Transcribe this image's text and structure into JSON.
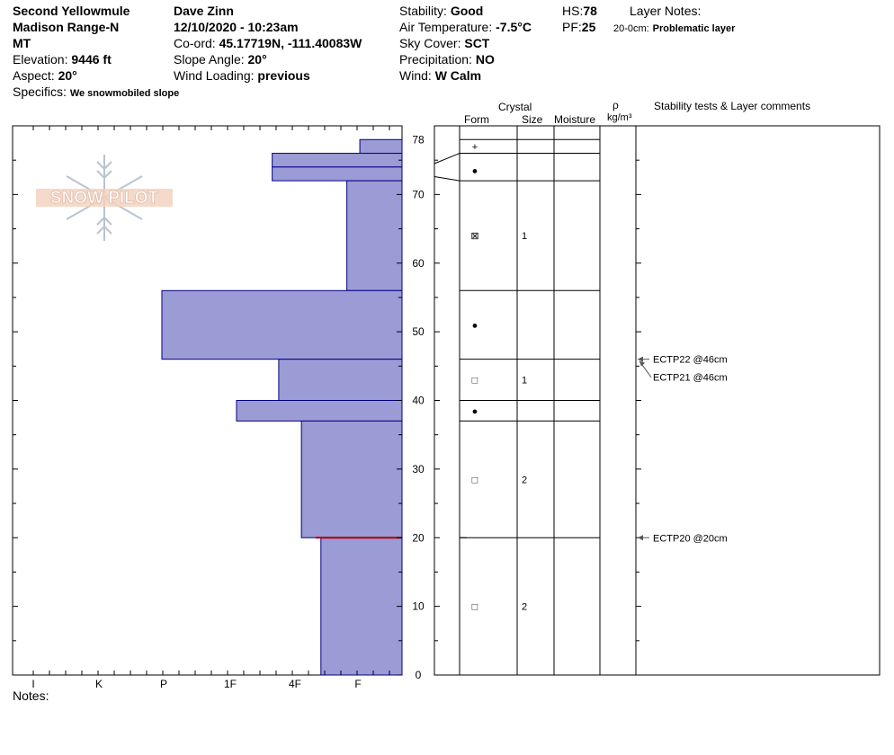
{
  "header": {
    "location_name": "Second Yellowmule",
    "range_name": "Madison Range-N",
    "state": "MT",
    "elevation_label": "Elevation:",
    "elevation_value": "9446 ft",
    "aspect_label": "Aspect:",
    "aspect_value": "20°",
    "specifics_label": "Specifics:",
    "specifics_value": "We snowmobiled slope",
    "observer": "Dave Zinn",
    "datetime": "12/10/2020 - 10:23am",
    "coord_label": "Co-ord:",
    "coord_value": "45.17719N, -111.40083W",
    "slope_label": "Slope Angle:",
    "slope_value": "20°",
    "wind_loading_label": "Wind Loading:",
    "wind_loading_value": "previous",
    "stability_label": "Stability:",
    "stability_value": "Good",
    "air_temp_label": "Air Temperature:",
    "air_temp_value": "-7.5°C",
    "sky_label": "Sky Cover:",
    "sky_value": "SCT",
    "precip_label": "Precipitation:",
    "precip_value": "NO",
    "wind_label": "Wind:",
    "wind_value": "W Calm",
    "hs_label": "HS:",
    "hs_value": "78",
    "pf_label": "PF:",
    "pf_value": "25",
    "layer_notes_label": "Layer Notes:",
    "layer_note_range": "20-0cm:",
    "layer_note_text": "Problematic layer"
  },
  "logo": {
    "text": "SNOW PILOT"
  },
  "columns": {
    "crystal": "Crystal",
    "form": "Form",
    "size": "Size",
    "moisture": "Moisture",
    "rho": "ρ",
    "density_unit": "kg/m³",
    "tests": "Stability tests & Layer comments"
  },
  "notes_label": "Notes:",
  "colors": {
    "fill": "#9b9bd6",
    "stroke": "#000080",
    "weak_layer": "#b00000"
  },
  "chart_data": {
    "type": "bar",
    "orientation": "horizontal",
    "description_axis": "snow depth (cm)",
    "ylim": [
      0,
      78
    ],
    "y_ticks": [
      0,
      10,
      20,
      30,
      40,
      50,
      60,
      70,
      78
    ],
    "x_categories": [
      "I",
      "K",
      "P",
      "1F",
      "4F",
      "F"
    ],
    "layers": [
      {
        "top": 78,
        "bottom": 76,
        "hardness": "F",
        "hardness_value": 0.65,
        "form": "+",
        "size": ""
      },
      {
        "top": 76,
        "bottom": 74,
        "hardness": "1F",
        "hardness_value": 2.0,
        "form": "●",
        "size": ""
      },
      {
        "top": 74,
        "bottom": 72,
        "hardness": "1F",
        "hardness_value": 2.0,
        "form": "●",
        "size": ""
      },
      {
        "top": 72,
        "bottom": 56,
        "hardness": "4F+",
        "hardness_value": 0.85,
        "form": "⊠",
        "size": "1"
      },
      {
        "top": 56,
        "bottom": 46,
        "hardness": "P-",
        "hardness_value": 3.7,
        "form": "●",
        "size": ""
      },
      {
        "top": 46,
        "bottom": 40,
        "hardness": "4F-",
        "hardness_value": 1.9,
        "form": "□",
        "size": "1"
      },
      {
        "top": 40,
        "bottom": 37,
        "hardness": "1F",
        "hardness_value": 2.55,
        "form": "●",
        "size": ""
      },
      {
        "top": 37,
        "bottom": 20,
        "hardness": "4F",
        "hardness_value": 1.55,
        "form": "□",
        "size": "2"
      },
      {
        "top": 20,
        "bottom": 0,
        "hardness": "F+",
        "hardness_value": 1.25,
        "form": "□",
        "size": "2"
      }
    ],
    "weak_layer_depth": 20,
    "tests": [
      {
        "depth": 46,
        "label": "ECTP22 @46cm",
        "row": 0
      },
      {
        "depth": 46,
        "label": "ECTP21 @46cm",
        "row": 1
      },
      {
        "depth": 20,
        "label": "ECTP20 @20cm",
        "row": 0
      }
    ]
  }
}
